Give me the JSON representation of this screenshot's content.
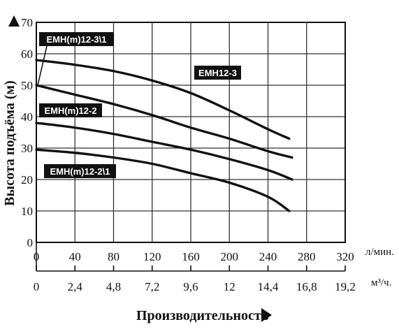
{
  "chart_data": {
    "type": "line",
    "ylabel": "Высота подъёма (м)",
    "xlabel": "Производительность",
    "xlim": [
      0,
      320
    ],
    "ylim": [
      0,
      70
    ],
    "x_ticks": [
      "0",
      "40",
      "80",
      "120",
      "160",
      "200",
      "240",
      "280",
      "320"
    ],
    "y_ticks": [
      "0",
      "10",
      "20",
      "30",
      "40",
      "50",
      "60",
      "70"
    ],
    "x_unit": "л/мин.",
    "x2_ticks": [
      "0",
      "2,4",
      "4,8",
      "7,2",
      "9,6",
      "12",
      "14,4",
      "16,8",
      "19,2"
    ],
    "x2_unit": "м³/ч.",
    "grid": true,
    "series": [
      {
        "name": "EMH12-3",
        "x": [
          0,
          40,
          80,
          120,
          160,
          200,
          240,
          262
        ],
        "y": [
          58,
          56.5,
          54.5,
          51.5,
          47.5,
          42,
          36,
          33
        ]
      },
      {
        "name": "EMH(m)12-3\\1",
        "x": [
          0,
          40,
          80,
          120,
          160,
          200,
          240,
          265
        ],
        "y": [
          50,
          47,
          44,
          40.5,
          36.5,
          33,
          29,
          27
        ]
      },
      {
        "name": "EMH(m)12-2",
        "x": [
          0,
          40,
          80,
          120,
          160,
          200,
          240,
          265
        ],
        "y": [
          38,
          36.5,
          34.5,
          32,
          29.5,
          26.5,
          23,
          20
        ]
      },
      {
        "name": "EMH(m)12-2\\1",
        "x": [
          0,
          40,
          80,
          120,
          160,
          200,
          240,
          262
        ],
        "y": [
          29.5,
          28.5,
          27,
          25,
          22,
          19,
          14.5,
          10
        ]
      }
    ]
  }
}
